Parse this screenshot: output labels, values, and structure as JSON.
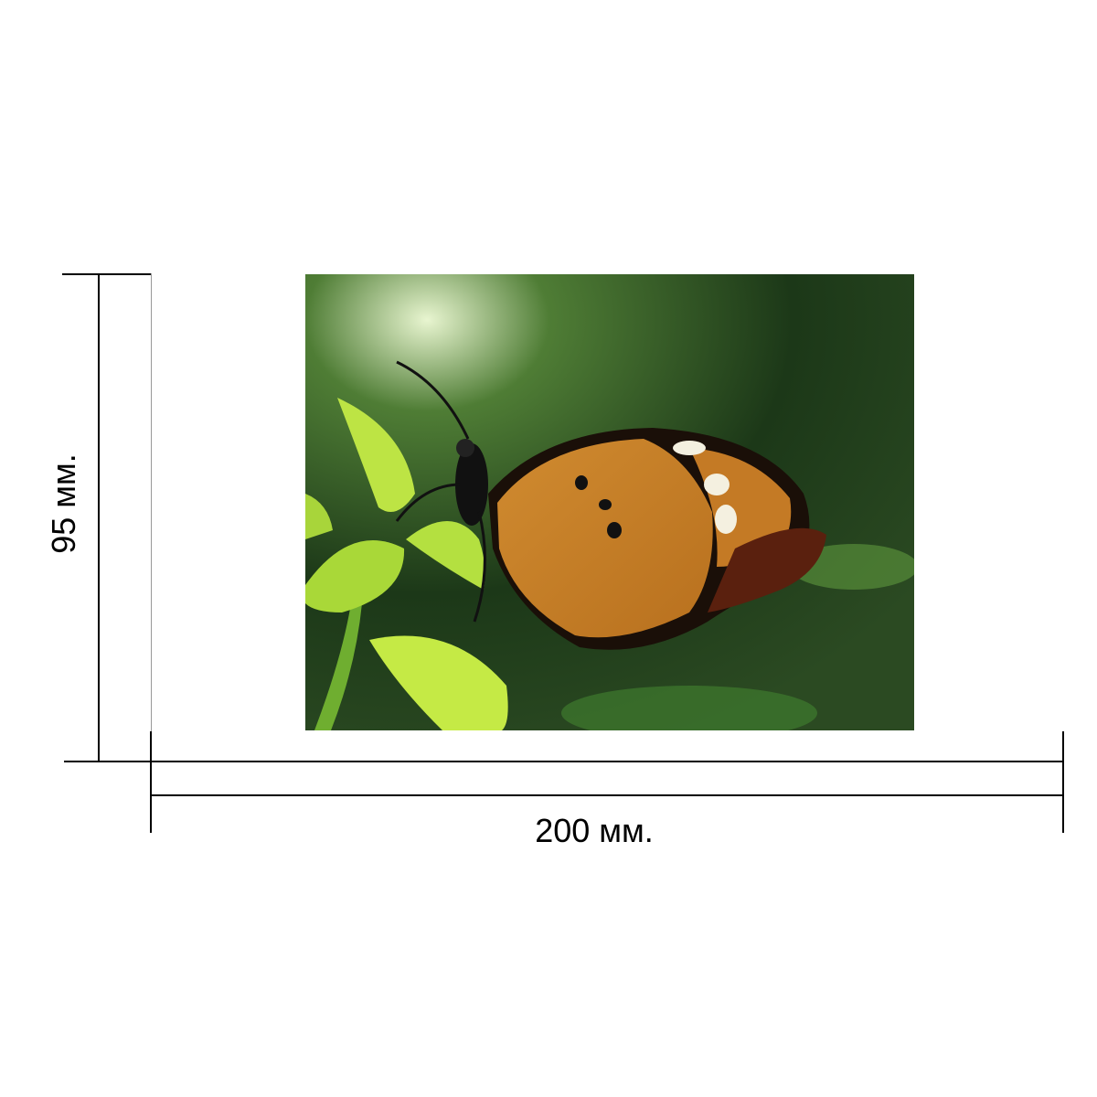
{
  "dimensions": {
    "width_label": "200 мм.",
    "height_label": "95 мм."
  },
  "photo": {
    "subject": "butterfly-on-leaf",
    "colors": {
      "wing": "#c9822a",
      "background": "#1e3a1a",
      "leaf": "#b6e03a"
    }
  }
}
